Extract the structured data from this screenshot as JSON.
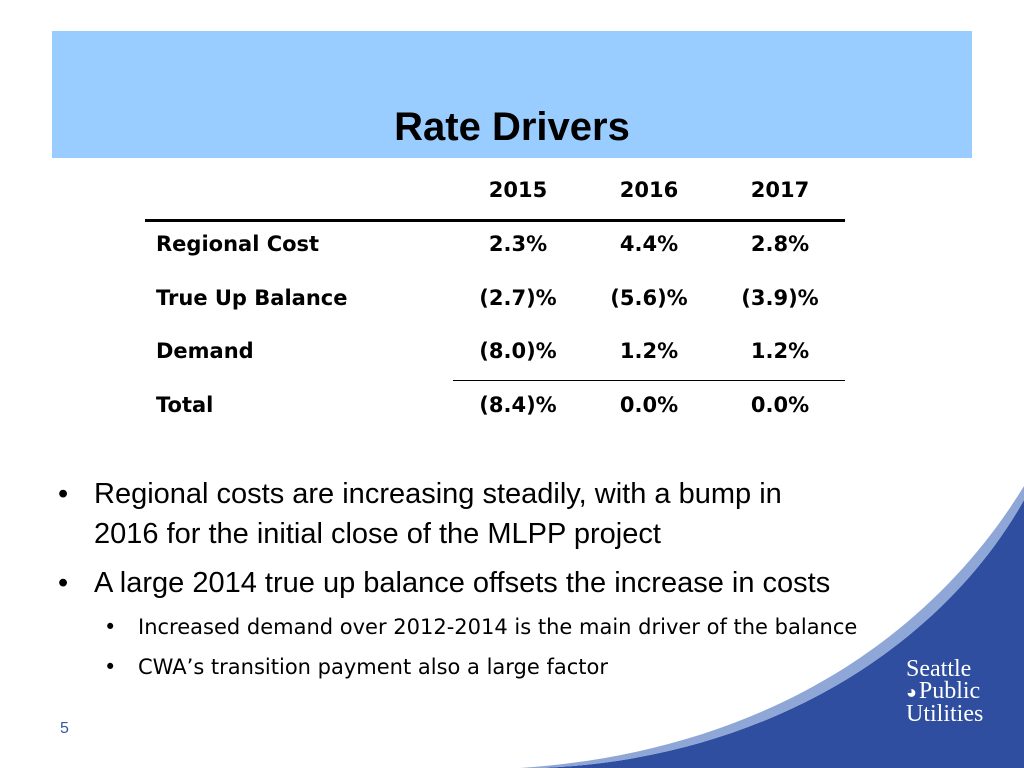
{
  "slide": {
    "title": "Rate Drivers",
    "page_number": "5",
    "accent_color": "#99ccff",
    "swoosh_color": "#2f4ea0"
  },
  "table": {
    "columns": [
      "2015",
      "2016",
      "2017"
    ],
    "rows": [
      {
        "label": "Regional Cost",
        "values": [
          "2.3%",
          "4.4%",
          "2.8%"
        ]
      },
      {
        "label": "True Up Balance",
        "values": [
          "(2.7)%",
          "(5.6)%",
          "(3.9)%"
        ]
      },
      {
        "label": "Demand",
        "values": [
          "(8.0)%",
          "1.2%",
          "1.2%"
        ]
      },
      {
        "label": "Total",
        "values": [
          "(8.4)%",
          "0.0%",
          "0.0%"
        ]
      }
    ]
  },
  "bullets": {
    "marker": "•",
    "level1": [
      {
        "line1": "Regional costs are increasing steadily, with a bump in",
        "line2": "2016 for the initial close of the MLPP project"
      },
      {
        "line1": "A large 2014 true up balance offsets the increase in costs"
      }
    ],
    "level2": [
      "Increased demand over 2012-2014 is the main driver of the balance",
      "CWA’s transition payment also a large factor"
    ]
  },
  "logo": {
    "line1": "Seattle",
    "line2": "Public",
    "line3": "Utilities",
    "icon": "globe-drop-icon"
  }
}
